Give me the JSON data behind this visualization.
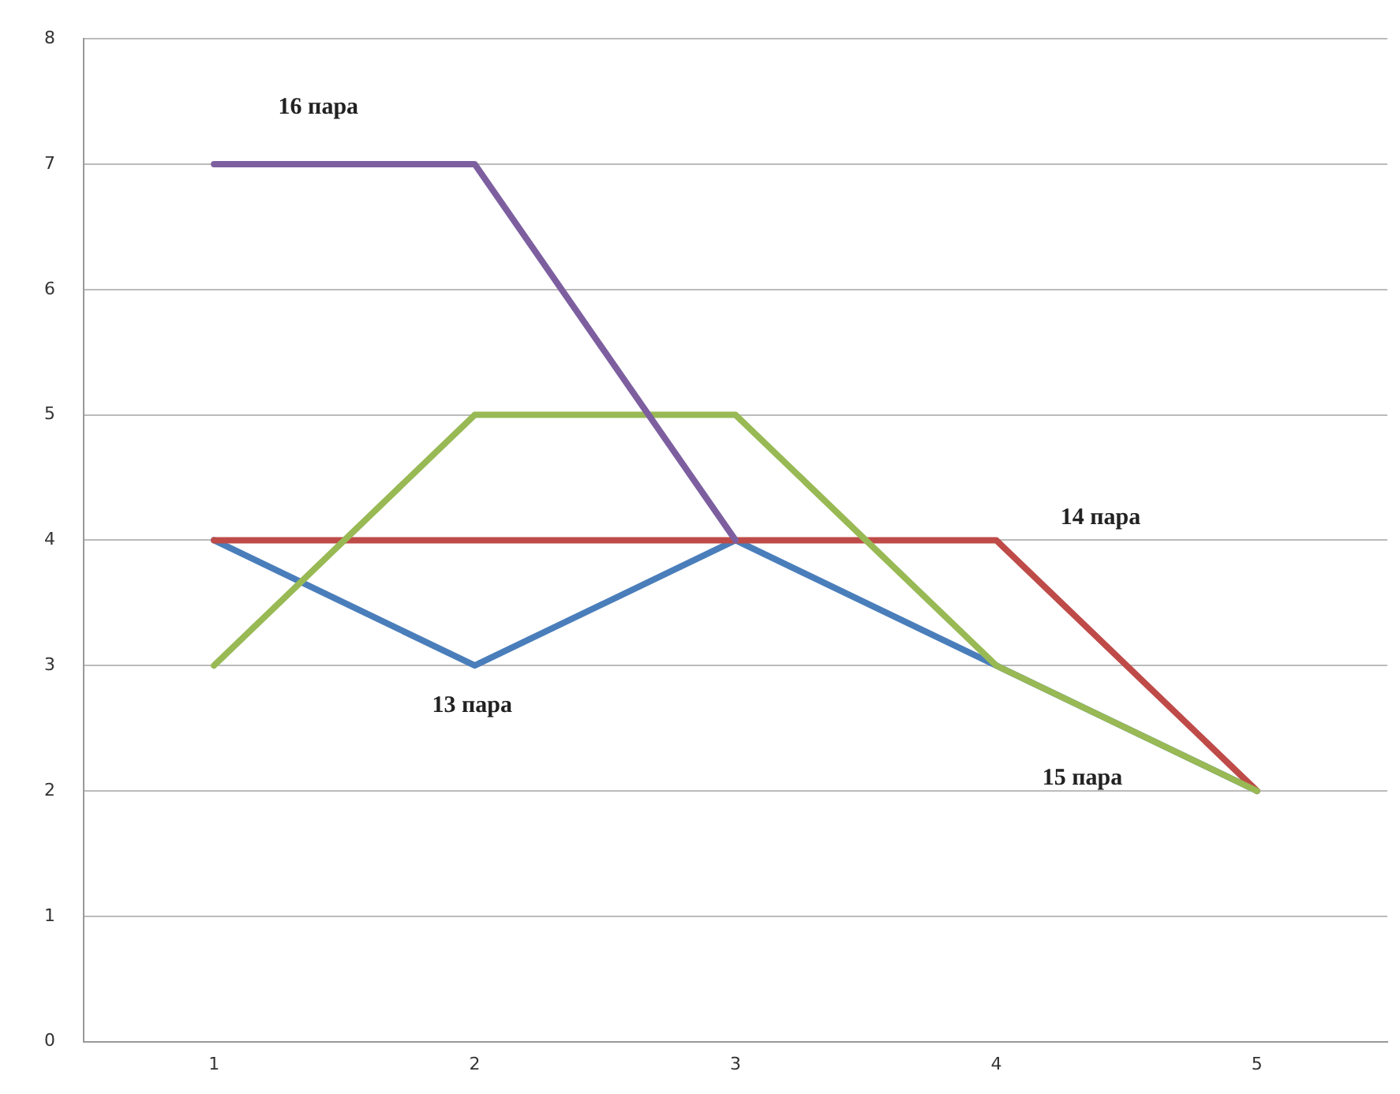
{
  "chart_data": {
    "type": "line",
    "categories": [
      "1",
      "2",
      "3",
      "4",
      "5"
    ],
    "series": [
      {
        "name": "13 пара",
        "color": "#4a7ebb",
        "values": [
          4,
          3,
          4,
          3,
          2
        ]
      },
      {
        "name": "14 пара",
        "color": "#be4b48",
        "values": [
          4,
          4,
          4,
          4,
          2
        ]
      },
      {
        "name": "15 пара",
        "color": "#98b954",
        "values": [
          3,
          5,
          5,
          3,
          2
        ]
      },
      {
        "name": "16 пара",
        "color": "#7d5fa0",
        "values": [
          7,
          7,
          4,
          null,
          null
        ]
      }
    ],
    "ylim": [
      0,
      8
    ],
    "yticks": [
      0,
      1,
      2,
      3,
      4,
      5,
      6,
      7,
      8
    ],
    "grid": "y",
    "legend": false,
    "marker": "none",
    "line_style": "solid"
  }
}
